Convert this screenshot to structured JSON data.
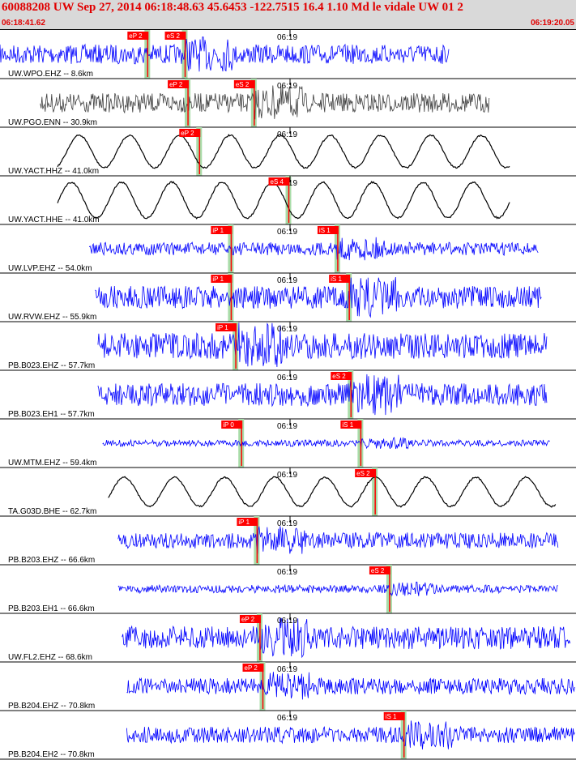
{
  "header": {
    "title": "60088208 UW Sep 27, 2014 06:18:48.63   45.6453 -122.7515 16.4 1.10 Md le vidale UW 01   2",
    "start_time": "06:18:41.62",
    "end_time": "06:19:20.05"
  },
  "colors": {
    "trace_blue": "#0000ff",
    "trace_gray": "#404040",
    "trace_black": "#000000",
    "pick_red": "#ff0000",
    "window_green": "#a8dca8",
    "header_text": "#e00000"
  },
  "chart_data": {
    "type": "line",
    "title": "60088208 UW Sep 27, 2014 06:18:48.63   45.6453 -122.7515 16.4 1.10 Md le vidale UW 01   2",
    "xlabel": "",
    "ylabel": "",
    "x_range": [
      "06:18:41.62",
      "06:19:20.05"
    ],
    "tick_label": "06:19",
    "series": [
      {
        "name": "UW.WPO.EHZ -- 8.6km",
        "color": "blue",
        "kind": "noise",
        "amp": 12,
        "start": 0.0,
        "end": 0.78,
        "picks": [
          {
            "label": "eP 2",
            "t": 0.255
          },
          {
            "label": "eS 2",
            "t": 0.32
          }
        ]
      },
      {
        "name": "UW.PGO.ENN -- 30.9km",
        "color": "gray",
        "kind": "noise",
        "amp": 12,
        "start": 0.07,
        "end": 0.85,
        "picks": [
          {
            "label": "eP 2",
            "t": 0.325
          },
          {
            "label": "eS 2",
            "t": 0.44
          }
        ]
      },
      {
        "name": "UW.YACT.HHZ -- 41.0km",
        "color": "black",
        "kind": "wave",
        "amp": 20,
        "start": 0.1,
        "end": 0.885,
        "picks": [
          {
            "label": "eP 2",
            "t": 0.345
          }
        ]
      },
      {
        "name": "UW.YACT.HHE -- 41.0km",
        "color": "black",
        "kind": "wave",
        "amp": 22,
        "start": 0.1,
        "end": 0.885,
        "picks": [
          {
            "label": "eS 4",
            "t": 0.5
          }
        ]
      },
      {
        "name": "UW.LVP.EHZ -- 54.0km",
        "color": "blue",
        "kind": "noise",
        "amp": 8,
        "start": 0.155,
        "end": 0.935,
        "picks": [
          {
            "label": "iP 1",
            "t": 0.4
          },
          {
            "label": "iS 1",
            "t": 0.585
          }
        ]
      },
      {
        "name": "UW.RVW.EHZ -- 55.9km",
        "color": "blue",
        "kind": "noise",
        "amp": 14,
        "start": 0.165,
        "end": 0.94,
        "picks": [
          {
            "label": "iP 1",
            "t": 0.4
          },
          {
            "label": "iS 1",
            "t": 0.605
          }
        ]
      },
      {
        "name": "PB.B023.EHZ -- 57.7km",
        "color": "blue",
        "kind": "noise",
        "amp": 16,
        "start": 0.17,
        "end": 0.95,
        "picks": [
          {
            "label": "iP 1",
            "t": 0.408
          }
        ]
      },
      {
        "name": "PB.B023.EH1 -- 57.7km",
        "color": "blue",
        "kind": "noise",
        "amp": 14,
        "start": 0.17,
        "end": 0.95,
        "picks": [
          {
            "label": "eS 2",
            "t": 0.608
          }
        ]
      },
      {
        "name": "UW.MTM.EHZ -- 59.4km",
        "color": "blue",
        "kind": "noise",
        "amp": 4,
        "start": 0.178,
        "end": 0.955,
        "picks": [
          {
            "label": "iP 0",
            "t": 0.418
          },
          {
            "label": "iS 1",
            "t": 0.625
          }
        ]
      },
      {
        "name": "TA.G03D.BHE -- 62.7km",
        "color": "black",
        "kind": "wave",
        "amp": 18,
        "start": 0.188,
        "end": 0.965,
        "picks": [
          {
            "label": "eS 2",
            "t": 0.65
          }
        ]
      },
      {
        "name": "PB.B203.EHZ -- 66.6km",
        "color": "blue",
        "kind": "noise",
        "amp": 10,
        "start": 0.205,
        "end": 0.97,
        "picks": [
          {
            "label": "iP 1",
            "t": 0.445
          }
        ]
      },
      {
        "name": "PB.B203.EH1 -- 66.6km",
        "color": "blue",
        "kind": "noise",
        "amp": 5,
        "start": 0.205,
        "end": 0.97,
        "picks": [
          {
            "label": "eS 2",
            "t": 0.675
          }
        ]
      },
      {
        "name": "UW.FL2.EHZ -- 68.6km",
        "color": "blue",
        "kind": "noise",
        "amp": 14,
        "start": 0.212,
        "end": 0.99,
        "picks": [
          {
            "label": "eP 2",
            "t": 0.45
          }
        ]
      },
      {
        "name": "PB.B204.EHZ -- 70.8km",
        "color": "blue",
        "kind": "noise",
        "amp": 10,
        "start": 0.22,
        "end": 0.998,
        "picks": [
          {
            "label": "eP 2",
            "t": 0.455
          }
        ]
      },
      {
        "name": "PB.B204.EH2 -- 70.8km",
        "color": "blue",
        "kind": "noise",
        "amp": 10,
        "start": 0.22,
        "end": 0.998,
        "picks": [
          {
            "label": "iS 1",
            "t": 0.7
          }
        ]
      }
    ]
  }
}
